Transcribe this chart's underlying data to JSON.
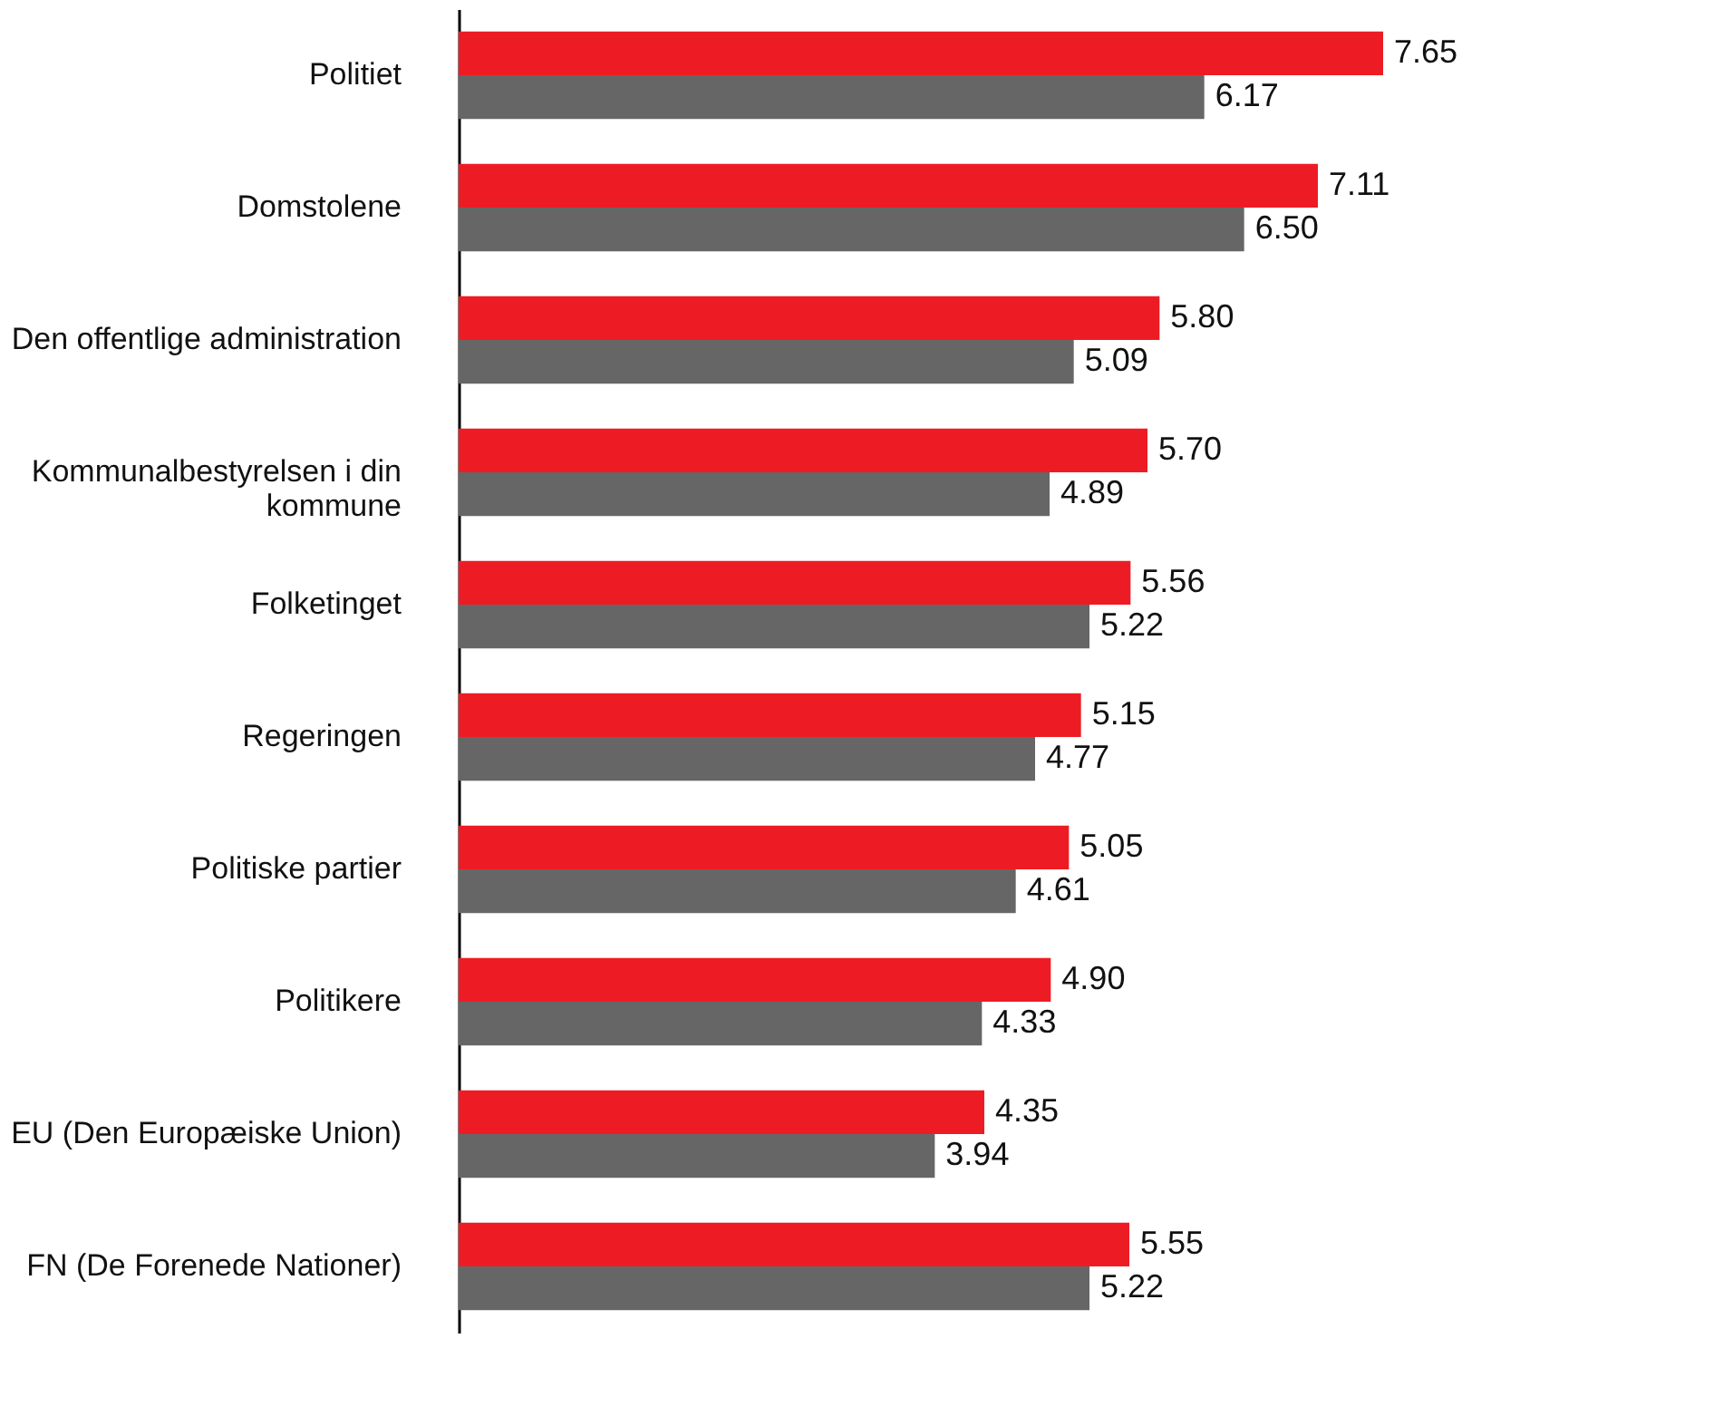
{
  "chart_data": {
    "type": "bar",
    "orientation": "horizontal",
    "categories": [
      "Politiet",
      "Domstolene",
      "Den offentlige administration",
      "Kommunalbestyrelsen i din kommune",
      "Folketinget",
      "Regeringen",
      "Politiske partier",
      "Politikere",
      "EU (Den Europæiske Union)",
      "FN (De Forenede Nationer)"
    ],
    "series": [
      {
        "color": "#ed1c24",
        "values": [
          7.65,
          7.11,
          5.8,
          5.7,
          5.56,
          5.15,
          5.05,
          4.9,
          4.35,
          5.55
        ],
        "value_labels": [
          "7.65",
          "7.11",
          "5.80",
          "5.70",
          "5.56",
          "5.15",
          "5.05",
          "4.90",
          "4.35",
          "5.55"
        ]
      },
      {
        "color": "#666666",
        "values": [
          6.17,
          6.5,
          5.09,
          4.89,
          5.22,
          4.77,
          4.61,
          4.33,
          3.94,
          5.22
        ],
        "value_labels": [
          "6.17",
          "6.50",
          "5.09",
          "4.89",
          "5.22",
          "4.77",
          "4.61",
          "4.33",
          "3.94",
          "5.22"
        ]
      }
    ]
  }
}
